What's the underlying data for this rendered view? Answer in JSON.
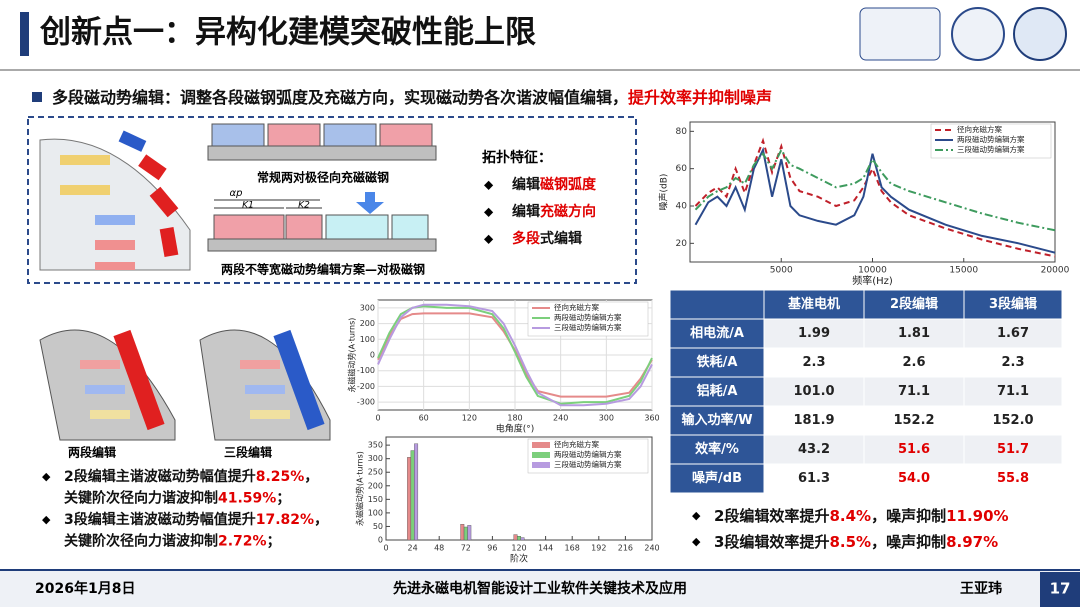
{
  "header": {
    "title": "创新点一：异构化建模突破性能上限"
  },
  "subtitle": [
    {
      "text": "多段磁动势编辑：调整各段磁钢弧度及充磁方向，实现磁动势各次谐波幅值编辑，"
    },
    {
      "text": "提升效率并抑制噪声",
      "color": "#e00000"
    }
  ],
  "diagram": {
    "conventional": "常规两对极径向充磁磁钢",
    "edited": "两段不等宽磁动势编辑方案—对极磁钢",
    "alpha": "αp",
    "k1": "K1",
    "k2": "K2"
  },
  "topology": {
    "title": "拓扑特征：",
    "items": [
      [
        {
          "text": "编辑"
        },
        {
          "text": "磁钢弧度",
          "color": "#e00000"
        }
      ],
      [
        {
          "text": "编辑"
        },
        {
          "text": "充磁方向",
          "color": "#e00000"
        }
      ],
      [
        {
          "text": "多段",
          "color": "#e00000"
        },
        {
          "text": "式编辑"
        }
      ]
    ]
  },
  "motors": [
    "两段编辑",
    "三段编辑"
  ],
  "left_bullets": [
    [
      {
        "text": "2段编辑主谐波磁动势幅值提升"
      },
      {
        "text": "8.25%",
        "color": "#e00000"
      },
      {
        "text": "，"
      }
    ],
    [
      {
        "text": "关键阶次径向力谐波抑制"
      },
      {
        "text": "41.59%",
        "color": "#e00000"
      },
      {
        "text": "；"
      }
    ],
    [
      {
        "text": "3段编辑主谐波磁动势幅值提升"
      },
      {
        "text": "17.82%",
        "color": "#e00000"
      },
      {
        "text": "，"
      }
    ],
    [
      {
        "text": "关键阶次径向力谐波抑制"
      },
      {
        "text": "2.72%",
        "color": "#e00000"
      },
      {
        "text": "；"
      }
    ]
  ],
  "right_bullets": [
    [
      {
        "text": "2段编辑效率提升"
      },
      {
        "text": "8.4%",
        "color": "#e00000"
      },
      {
        "text": "，噪声抑制"
      },
      {
        "text": "11.90%",
        "color": "#e00000"
      }
    ],
    [
      {
        "text": "3段编辑效率提升"
      },
      {
        "text": "8.5%",
        "color": "#e00000"
      },
      {
        "text": "，噪声抑制"
      },
      {
        "text": "8.97%",
        "color": "#e00000"
      }
    ]
  ],
  "table": {
    "header": [
      "基准电机",
      "2段编辑",
      "3段编辑"
    ],
    "rows": [
      [
        "相电流/A",
        "1.99",
        "1.81",
        "1.67"
      ],
      [
        "铁耗/A",
        "2.3",
        "2.6",
        "2.3"
      ],
      [
        "铝耗/A",
        "101.0",
        "71.1",
        "71.1"
      ],
      [
        "输入功率/W",
        "181.9",
        "152.2",
        "152.0"
      ],
      [
        "效率/%",
        "43.2",
        {
          "text": "51.6",
          "color": "#e00000"
        },
        {
          "text": "51.7",
          "color": "#e00000"
        }
      ],
      [
        "噪声/dB",
        "61.3",
        {
          "text": "54.0",
          "color": "#e00000"
        },
        {
          "text": "55.8",
          "color": "#e00000"
        }
      ]
    ]
  },
  "footer": {
    "date": "2026年1月8日",
    "title": "先进永磁电机智能设计工业软件关键技术及应用",
    "author": "王亚玮",
    "page": "17"
  },
  "chart_data": [
    {
      "type": "line",
      "x_label": "频率(Hz)",
      "y_label": "噪声(dB)",
      "x": [
        300,
        1000,
        1500,
        2000,
        2500,
        3000,
        3500,
        4000,
        4500,
        5000,
        5500,
        6000,
        7000,
        8000,
        9000,
        9500,
        10000,
        10500,
        11000,
        12000,
        14000,
        16000,
        18000,
        20000
      ],
      "xlim": [
        0,
        20000
      ],
      "xticks": [
        5000,
        10000,
        15000,
        20000
      ],
      "ylim": [
        10,
        85
      ],
      "yticks": [
        20,
        40,
        60,
        80
      ],
      "series": [
        {
          "name": "径向充磁方案",
          "color": "#c0202a",
          "dash": "6 4",
          "values": [
            40,
            47,
            50,
            45,
            60,
            47,
            62,
            75,
            58,
            72,
            55,
            48,
            45,
            40,
            43,
            50,
            60,
            48,
            42,
            35,
            28,
            22,
            17,
            13
          ]
        },
        {
          "name": "两段磁动势编辑方案",
          "color": "#2b4a8b",
          "values": [
            30,
            42,
            45,
            40,
            50,
            38,
            60,
            70,
            45,
            65,
            40,
            35,
            32,
            30,
            35,
            45,
            68,
            50,
            45,
            38,
            30,
            24,
            20,
            15
          ]
        },
        {
          "name": "三段磁动势编辑方案",
          "color": "#3e9b5e",
          "dash": "8 3 2 3",
          "values": [
            38,
            45,
            48,
            50,
            55,
            52,
            62,
            68,
            60,
            70,
            62,
            60,
            55,
            50,
            52,
            55,
            65,
            58,
            52,
            48,
            42,
            36,
            31,
            27
          ]
        }
      ]
    },
    {
      "type": "line",
      "x_label": "电角度(°)",
      "y_label": "永磁磁动势(A·turns)",
      "grid": true,
      "x": [
        0,
        15,
        30,
        45,
        60,
        90,
        120,
        150,
        165,
        180,
        195,
        210,
        240,
        270,
        300,
        330,
        345,
        360
      ],
      "xlim": [
        0,
        360
      ],
      "xticks": [
        0,
        60,
        120,
        180,
        240,
        300,
        360
      ],
      "ylim": [
        -350,
        350
      ],
      "yticks": [
        -300,
        -200,
        -100,
        0,
        100,
        200,
        300
      ],
      "series": [
        {
          "name": "径向充磁方案",
          "color": "#e58a8a",
          "values": [
            -30,
            120,
            230,
            260,
            265,
            265,
            265,
            240,
            150,
            30,
            -120,
            -230,
            -265,
            -265,
            -265,
            -240,
            -150,
            -30
          ]
        },
        {
          "name": "两段磁动势编辑方案",
          "color": "#7ccf7c",
          "values": [
            -20,
            140,
            260,
            300,
            310,
            300,
            300,
            260,
            170,
            20,
            -140,
            -260,
            -310,
            -300,
            -300,
            -260,
            -170,
            -20
          ]
        },
        {
          "name": "三段磁动势编辑方案",
          "color": "#b79be0",
          "values": [
            -60,
            100,
            240,
            300,
            320,
            320,
            310,
            280,
            200,
            60,
            -100,
            -240,
            -320,
            -320,
            -310,
            -280,
            -200,
            -60
          ]
        }
      ]
    },
    {
      "type": "bar",
      "x_label": "阶次",
      "y_label": "永磁磁动势(A·turns)",
      "x": [
        24,
        72,
        120
      ],
      "xlim": [
        0,
        240
      ],
      "xticks": [
        0,
        24,
        48,
        72,
        96,
        120,
        144,
        168,
        192,
        216,
        240
      ],
      "ylim": [
        0,
        380
      ],
      "yticks": [
        0,
        50,
        100,
        150,
        200,
        250,
        300,
        350
      ],
      "series": [
        {
          "name": "径向充磁方案",
          "color": "#e58a8a",
          "values": [
            305,
            58,
            20
          ]
        },
        {
          "name": "两段磁动势编辑方案",
          "color": "#7ccf7c",
          "values": [
            330,
            48,
            14
          ]
        },
        {
          "name": "三段磁动势编辑方案",
          "color": "#b79be0",
          "values": [
            355,
            54,
            9
          ]
        }
      ]
    }
  ]
}
